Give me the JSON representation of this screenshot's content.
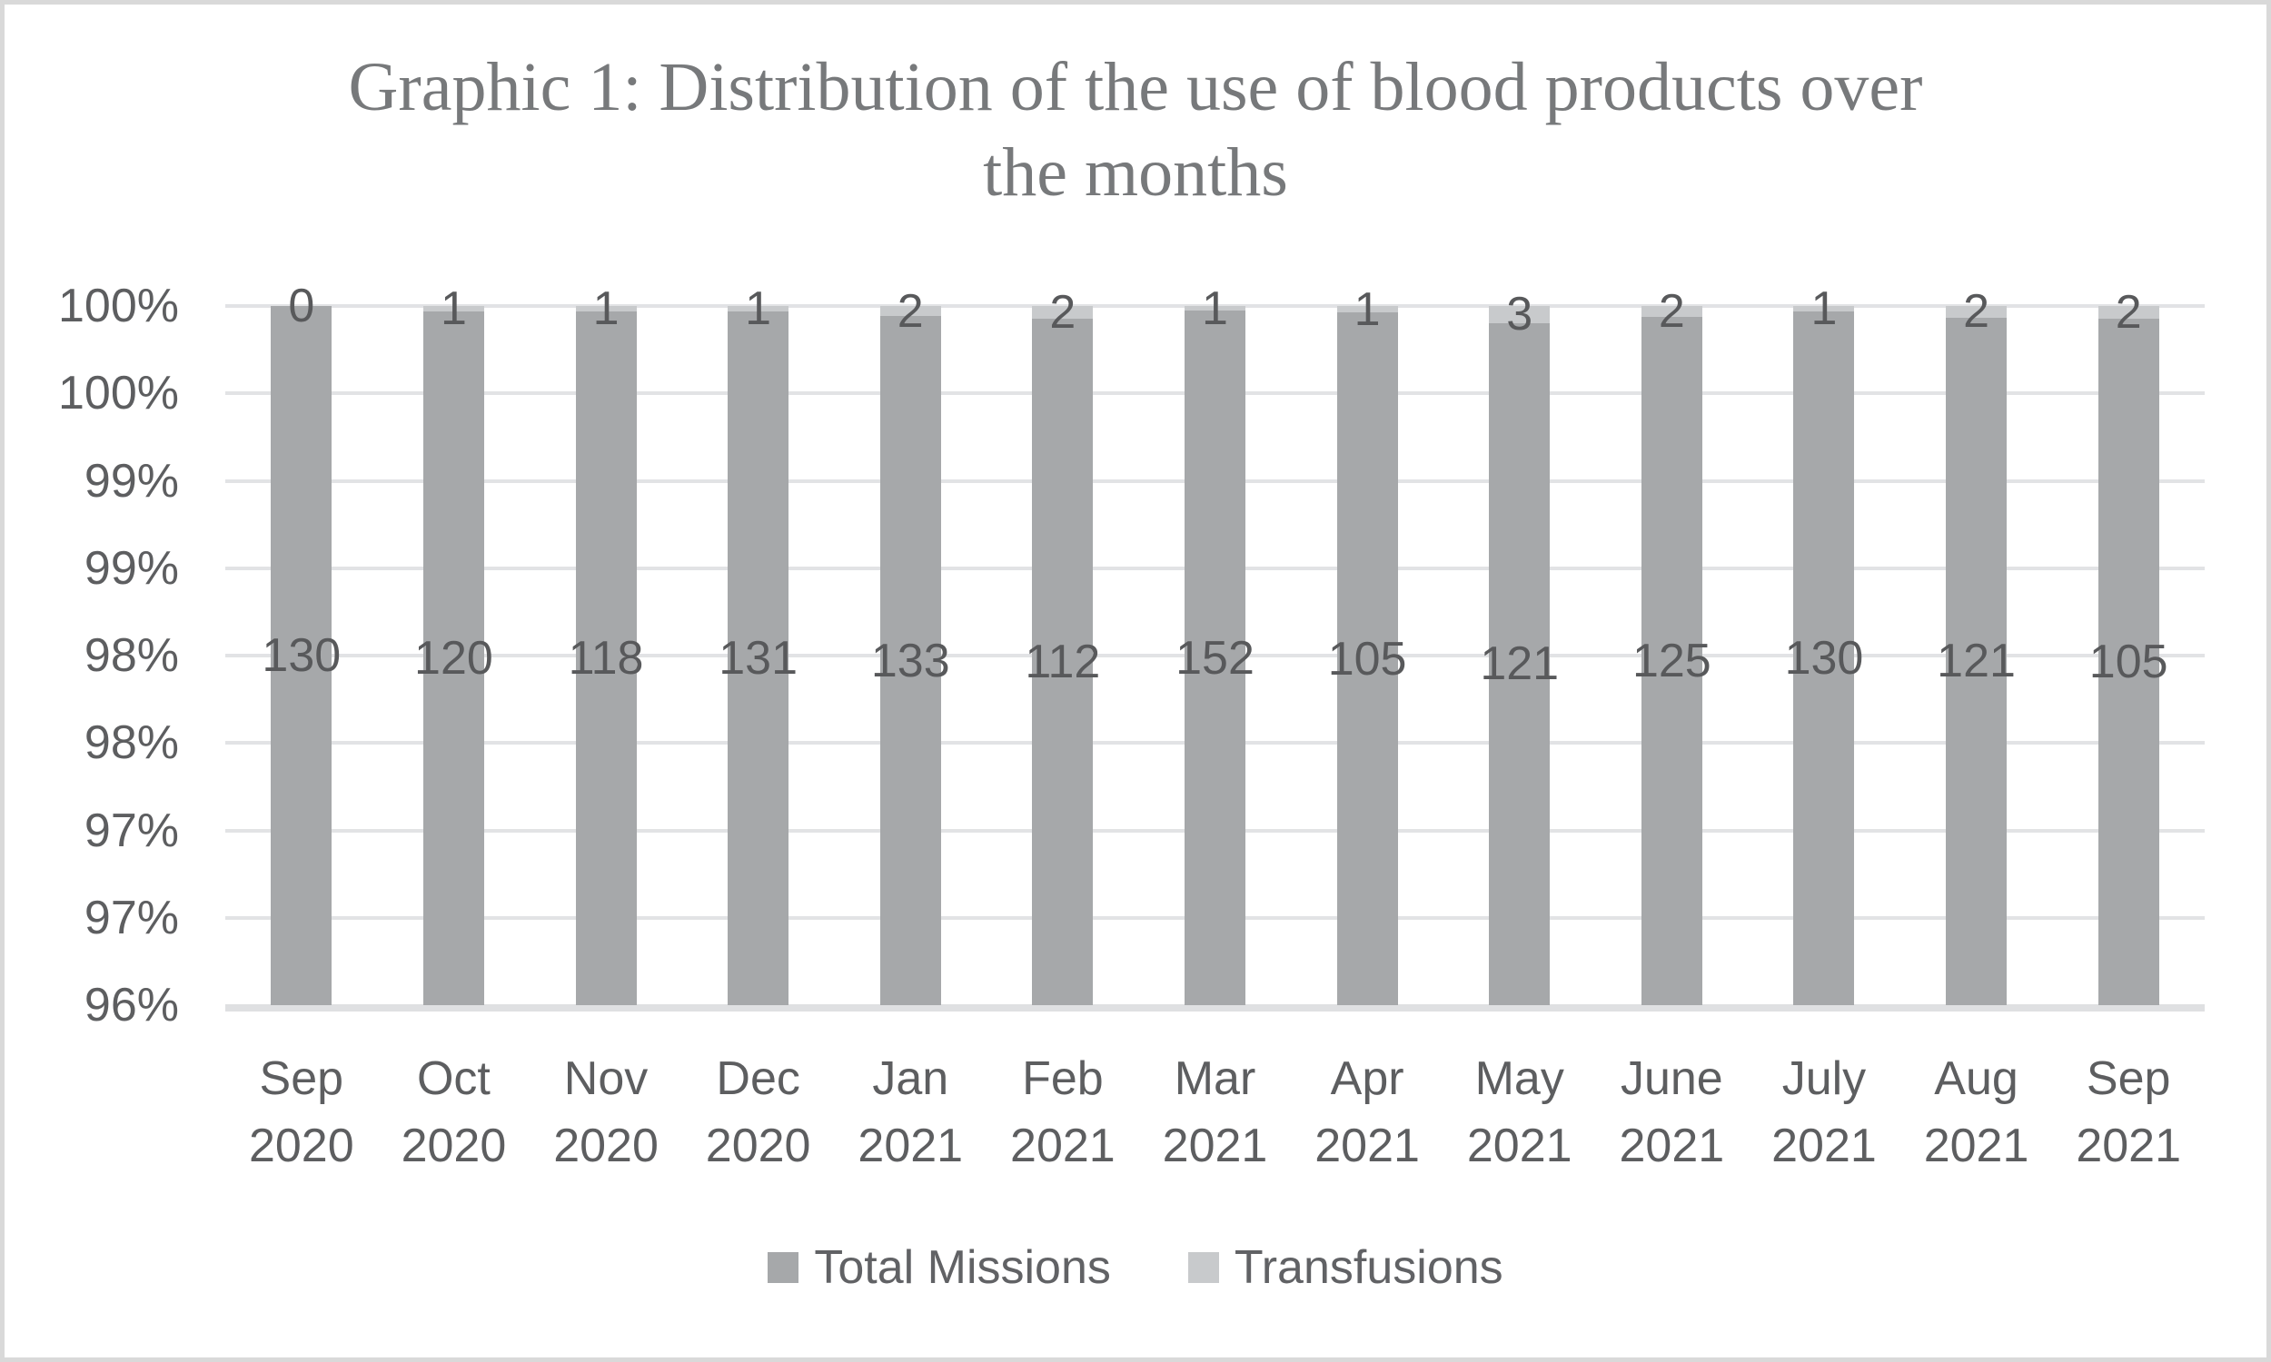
{
  "chart_data": {
    "type": "bar",
    "subtype": "stacked-100-percent",
    "title": "Graphic 1: Distribution of the use of blood products over the months",
    "title_lines": [
      "Graphic 1: Distribution of the use of blood products over",
      "the months"
    ],
    "categories": [
      "Sep 2020",
      "Oct 2020",
      "Nov 2020",
      "Dec 2020",
      "Jan 2021",
      "Feb 2021",
      "Mar 2021",
      "Apr 2021",
      "May 2021",
      "June 2021",
      "July 2021",
      "Aug 2021",
      "Sep 2021"
    ],
    "series": [
      {
        "name": "Total Missions",
        "color": "#a6a8aa",
        "values": [
          130,
          120,
          118,
          131,
          133,
          112,
          152,
          105,
          121,
          125,
          130,
          121,
          105
        ]
      },
      {
        "name": "Transfusions",
        "color": "#c8cacc",
        "values": [
          0,
          1,
          1,
          1,
          2,
          2,
          1,
          1,
          3,
          2,
          1,
          2,
          2
        ]
      }
    ],
    "data_labels_shown": true,
    "y_axis": {
      "tick_labels": [
        "100%",
        "100%",
        "99%",
        "99%",
        "98%",
        "98%",
        "97%",
        "97%",
        "96%"
      ],
      "tick_values": [
        100,
        99.5,
        99,
        98.5,
        98,
        97.5,
        97,
        96.5,
        96
      ],
      "min": 96,
      "max": 100,
      "grid": true
    },
    "legend_position": "bottom",
    "palette": {
      "title_text": "#77797b",
      "axis_text": "#5d5e60",
      "data_label_text": "#58595b",
      "gridline": "#e2e3e5",
      "axis_line": "#dfe0e2",
      "frame_border": "#d9d9d9",
      "background": "#ffffff"
    }
  }
}
